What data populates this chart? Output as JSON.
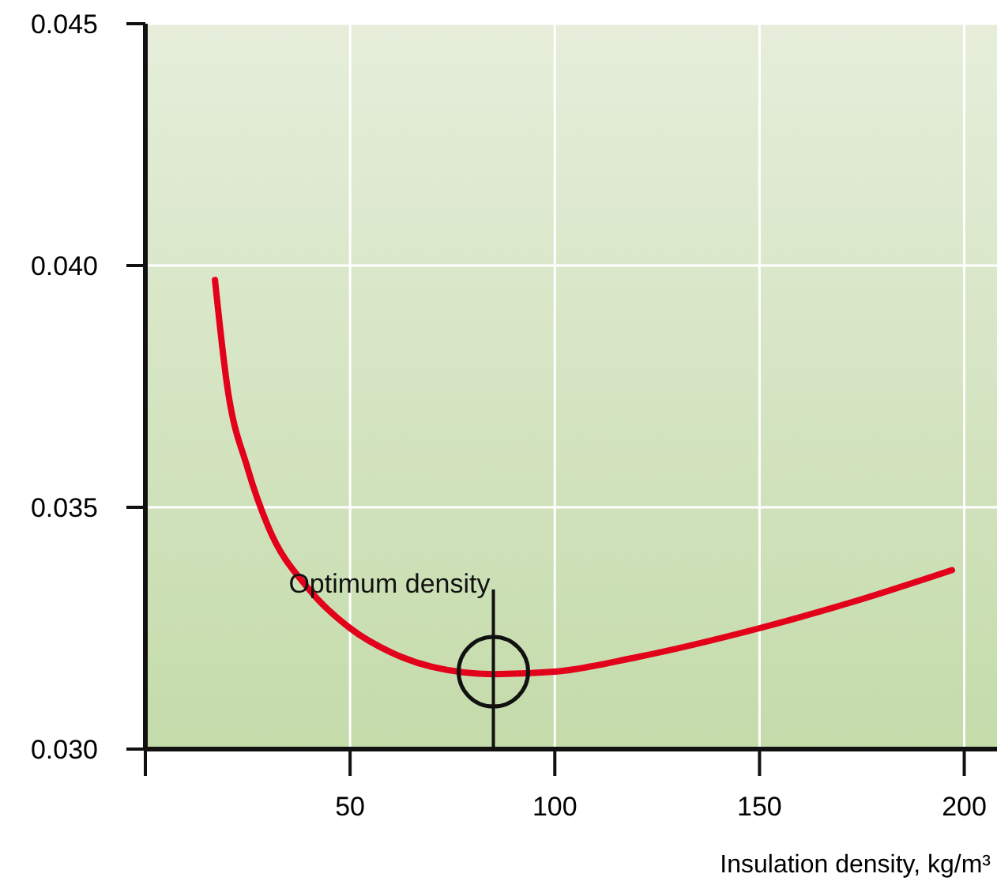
{
  "chart_data": {
    "type": "line",
    "xlabel": "Insulation density, kg/m³",
    "x": [
      17,
      20,
      25,
      30,
      40,
      50,
      60,
      70,
      85,
      100,
      120,
      150,
      175,
      197
    ],
    "series": [
      {
        "color": "#e3001b",
        "values": [
          0.0397,
          0.0375,
          0.0358,
          0.0346,
          0.0333,
          0.0325,
          0.032,
          0.0317,
          0.03155,
          0.0316,
          0.0319,
          0.0325,
          0.0331,
          0.0337
        ]
      }
    ],
    "xlim": [
      0,
      208
    ],
    "ylim": [
      0.03,
      0.045
    ],
    "xticks": [
      50,
      100,
      150,
      200
    ],
    "yticks": [
      {
        "value": 0.03,
        "label": "0.030"
      },
      {
        "value": 0.035,
        "label": "0.035"
      },
      {
        "value": 0.04,
        "label": "0.040"
      },
      {
        "value": 0.045,
        "label": "0.045"
      }
    ],
    "grid": true,
    "marker": "none",
    "line_style": "solid",
    "annotations": [
      {
        "text": "Optimum density",
        "x": 85,
        "y": 0.0316
      }
    ]
  }
}
